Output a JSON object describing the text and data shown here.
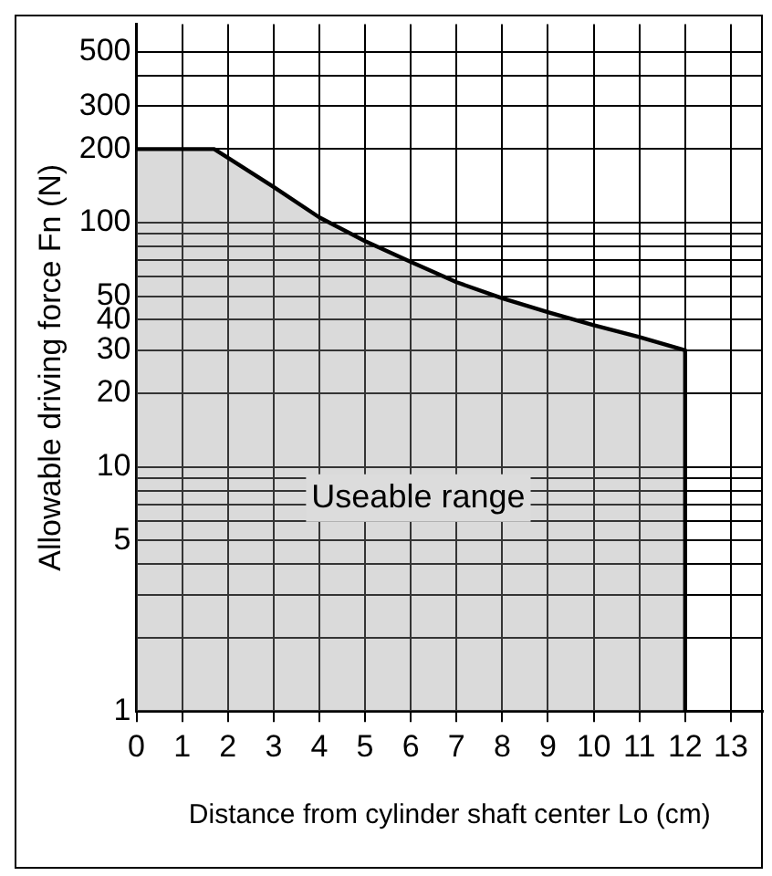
{
  "chart_data": {
    "type": "area",
    "xlabel": "Distance from cylinder shaft center Lo (cm)",
    "ylabel": "Allowable driving force Fn (N)",
    "x": [
      0,
      1.7,
      3,
      4,
      5,
      6,
      7,
      8,
      9,
      10,
      11,
      12,
      12
    ],
    "series": [
      {
        "color": "#000000",
        "values": [
          200,
          200,
          140,
          105,
          84,
          69,
          57,
          49,
          43,
          38,
          34,
          30,
          1
        ]
      }
    ],
    "xlim": [
      0,
      13.7
    ],
    "xticks": [
      0,
      1,
      2,
      3,
      4,
      5,
      6,
      7,
      8,
      9,
      10,
      11,
      12,
      13
    ],
    "ylim": [
      1,
      650
    ],
    "log": "y",
    "yticks": [
      1,
      {
        "value": 2,
        "label": null
      },
      {
        "value": 3,
        "label": null
      },
      {
        "value": 4,
        "label": null
      },
      5,
      {
        "value": 6,
        "label": null
      },
      {
        "value": 7,
        "label": null
      },
      {
        "value": 8,
        "label": null
      },
      {
        "value": 9,
        "label": null
      },
      10,
      20,
      30,
      40,
      50,
      {
        "value": 60,
        "label": null
      },
      {
        "value": 70,
        "label": null
      },
      {
        "value": 80,
        "label": null
      },
      {
        "value": 90,
        "label": null
      },
      100,
      200,
      300,
      {
        "value": 400,
        "label": null
      },
      500
    ],
    "grid": true,
    "legend": false,
    "annotations": [
      "Useable range"
    ]
  }
}
